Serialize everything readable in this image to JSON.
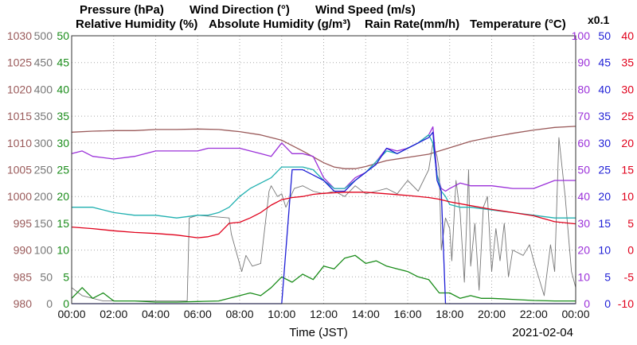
{
  "chart_data": {
    "type": "line",
    "date": "2021-02-04",
    "xlabel": "Time (JST)",
    "x_ticks": [
      "00:00",
      "02:00",
      "04:00",
      "06:00",
      "08:00",
      "10:00",
      "12:00",
      "14:00",
      "16:00",
      "18:00",
      "20:00",
      "22:00",
      "00:00"
    ],
    "x_hours": [
      0,
      2,
      4,
      6,
      8,
      10,
      12,
      14,
      16,
      18,
      20,
      22,
      24
    ],
    "legend": [
      {
        "label": "Pressure (hPa)",
        "color": "#9a5a5a"
      },
      {
        "label": "Wind Direction (°)",
        "color": "#777777"
      },
      {
        "label": "Wind Speed (m/s)",
        "color": "#1a8c1a"
      },
      {
        "label": "Relative Humidity (%)",
        "color": "#9b30d9"
      },
      {
        "label": "Absolute Humidity (g/m³)",
        "color": "#20b0b0"
      },
      {
        "label": "Rain Rate(mm/h)",
        "color": "#1f1fd6"
      },
      {
        "label": "Temperature (°C)",
        "color": "#e0001b"
      }
    ],
    "multiplier_label": "x0.1",
    "axes": {
      "pressure": {
        "ticks": [
          "1030",
          "1025",
          "1020",
          "1015",
          "1010",
          "1005",
          "1000",
          "995",
          "990",
          "985",
          "980"
        ],
        "range": [
          980,
          1030
        ],
        "color": "#9a5a5a"
      },
      "wind_dir": {
        "ticks": [
          "500",
          "450",
          "400",
          "350",
          "300",
          "250",
          "200",
          "150",
          "100",
          "50",
          "0"
        ],
        "range": [
          0,
          500
        ],
        "color": "#777777"
      },
      "wind_speed": {
        "ticks": [
          "50",
          "45",
          "40",
          "35",
          "30",
          "25",
          "20",
          "15",
          "10",
          "5",
          "0"
        ],
        "range": [
          0,
          50
        ],
        "color": "#1a8c1a"
      },
      "humidity": {
        "ticks": [
          "100",
          "90",
          "80",
          "70",
          "60",
          "50",
          "40",
          "30",
          "20",
          "10",
          "0"
        ],
        "range": [
          0,
          100
        ],
        "color": "#9b30d9"
      },
      "rain": {
        "ticks": [
          "50",
          "45",
          "40",
          "35",
          "30",
          "25",
          "20",
          "15",
          "10",
          "5",
          "0"
        ],
        "range": [
          0,
          50
        ],
        "color": "#1f1fd6"
      },
      "temperature": {
        "ticks": [
          "40",
          "35",
          "30",
          "25",
          "20",
          "15",
          "10",
          "5",
          "0",
          "-5",
          "-10"
        ],
        "range": [
          -10,
          40
        ],
        "color": "#e0001b"
      }
    },
    "series": [
      {
        "name": "Pressure (hPa)",
        "axis": "pressure",
        "color": "#9a5a5a",
        "x": [
          0,
          1,
          2,
          3,
          4,
          5,
          6,
          7,
          7.5,
          8,
          9,
          10,
          11,
          12,
          12.5,
          13,
          13.5,
          14,
          15,
          16,
          17,
          18,
          19,
          20,
          21,
          22,
          23,
          24
        ],
        "y": [
          1012,
          1012.2,
          1012.3,
          1012.3,
          1012.5,
          1012.5,
          1012.6,
          1012.5,
          1012.3,
          1012.1,
          1011.5,
          1010.5,
          1008.5,
          1006.3,
          1005.5,
          1005.2,
          1005.2,
          1005.6,
          1006.7,
          1007.3,
          1007.9,
          1009.1,
          1010.3,
          1011.1,
          1011.8,
          1012.4,
          1012.9,
          1013.1
        ]
      },
      {
        "name": "Wind Direction (°)",
        "axis": "wind_dir",
        "color": "#777777",
        "x": [
          0,
          0.5,
          1,
          1.5,
          2,
          3,
          4,
          5.5,
          5.6,
          6,
          7.5,
          7.6,
          8.1,
          8.3,
          8.6,
          9,
          9.4,
          9.5,
          9.8,
          10,
          10.2,
          10.6,
          11,
          11.5,
          12,
          12.5,
          13,
          13.5,
          14,
          14.5,
          15,
          15.5,
          16,
          16.5,
          17,
          17.2,
          17.4,
          17.5,
          17.6,
          17.8,
          18,
          18.1,
          18.3,
          18.5,
          18.7,
          18.9,
          19,
          19.2,
          19.4,
          19.6,
          19.8,
          20,
          20.2,
          20.4,
          20.6,
          20.8,
          21,
          21.5,
          21.8,
          22,
          22.5,
          22.8,
          23,
          23.2,
          23.5,
          23.8,
          24
        ],
        "y": [
          30,
          15,
          10,
          5,
          5,
          5,
          5,
          5,
          160,
          165,
          160,
          130,
          60,
          90,
          70,
          75,
          210,
          220,
          200,
          205,
          180,
          215,
          220,
          210,
          205,
          210,
          200,
          220,
          205,
          210,
          215,
          205,
          230,
          210,
          250,
          300,
          275,
          250,
          100,
          160,
          140,
          80,
          230,
          170,
          40,
          250,
          70,
          150,
          25,
          180,
          200,
          60,
          140,
          80,
          150,
          50,
          100,
          90,
          110,
          80,
          15,
          110,
          60,
          310,
          200,
          60,
          30
        ]
      },
      {
        "name": "Wind Speed (m/s)",
        "axis": "wind_speed",
        "color": "#1a8c1a",
        "x": [
          0,
          0.5,
          1,
          1.5,
          2,
          3,
          4,
          5,
          6,
          7,
          7.5,
          8,
          8.5,
          9,
          9.5,
          10,
          10.5,
          11,
          11.5,
          12,
          12.5,
          13,
          13.5,
          14,
          14.5,
          15,
          15.5,
          16,
          16.5,
          17,
          17.5,
          18,
          18.5,
          19,
          19.5,
          20,
          21,
          22,
          23,
          24
        ],
        "y": [
          1,
          3,
          1,
          2,
          0.5,
          0.5,
          0.3,
          0.3,
          0.4,
          0.5,
          1,
          1.5,
          2,
          1.5,
          3,
          5,
          4,
          5.5,
          4.5,
          7,
          6.5,
          8.5,
          9,
          7.5,
          8,
          7,
          6.5,
          6,
          5,
          4.5,
          2,
          2,
          1,
          1.5,
          1,
          1,
          0.8,
          0.6,
          0.5,
          0.5
        ]
      },
      {
        "name": "Relative Humidity (%)",
        "axis": "humidity",
        "color": "#9b30d9",
        "x": [
          0,
          0.5,
          1,
          2,
          3,
          4,
          5,
          6,
          6.5,
          7,
          7.5,
          8,
          8.5,
          9,
          9.5,
          10,
          10.5,
          11,
          11.5,
          12,
          12.5,
          13,
          13.5,
          14,
          14.5,
          15,
          15.5,
          16,
          16.5,
          17,
          17.2,
          17.4,
          17.6,
          17.8,
          18,
          18.5,
          19,
          20,
          21,
          22,
          23,
          24
        ],
        "y": [
          56,
          57,
          55,
          54,
          55,
          57,
          57,
          57,
          58,
          58,
          58,
          58,
          57,
          56,
          55,
          60,
          56,
          56,
          55,
          47,
          43,
          43,
          47,
          49,
          53,
          58,
          57,
          58,
          60,
          63,
          66,
          48,
          43,
          42,
          43,
          45,
          44,
          44,
          43,
          43,
          46,
          46
        ]
      },
      {
        "name": "Absolute Humidity (g/m³)",
        "axis": "humidity",
        "color": "#20b0b0",
        "x": [
          0,
          1,
          2,
          3,
          4,
          5,
          6,
          6.5,
          7,
          7.5,
          8,
          8.5,
          9,
          9.5,
          10,
          10.5,
          11,
          11.5,
          12,
          12.5,
          13,
          13.5,
          14,
          14.5,
          15,
          15.5,
          16,
          16.5,
          17,
          17.2,
          17.4,
          17.6,
          17.8,
          18,
          18.5,
          19,
          20,
          21,
          22,
          23,
          24
        ],
        "y": [
          36,
          36,
          34,
          33,
          33,
          32,
          33,
          33,
          34,
          36,
          40,
          43,
          45,
          47,
          51,
          51,
          51,
          50,
          46,
          43,
          43,
          46,
          49,
          53,
          57,
          56,
          58,
          60,
          63,
          60,
          48,
          42,
          40,
          37,
          36,
          36,
          35,
          34,
          33,
          32,
          32
        ]
      },
      {
        "name": "Rain Rate(mm/h)",
        "axis": "rain",
        "color": "#1f1fd6",
        "x": [
          0,
          10,
          10.5,
          11,
          11.5,
          12,
          12.5,
          13,
          13.5,
          14,
          14.5,
          15,
          15.5,
          16,
          16.5,
          17,
          17.2,
          17.4,
          17.6,
          17.8,
          18,
          24
        ],
        "y": [
          0,
          0,
          25,
          25,
          24,
          23,
          21,
          21,
          23,
          24.5,
          26,
          29,
          28,
          29,
          30,
          31,
          32,
          23,
          21,
          0,
          0,
          0
        ]
      },
      {
        "name": "Temperature (°C)",
        "axis": "temperature",
        "color": "#e0001b",
        "x": [
          0,
          1,
          2,
          3,
          4,
          5,
          6,
          6.5,
          7,
          7.5,
          8,
          8.5,
          9,
          9.5,
          10,
          10.5,
          11,
          11.5,
          12,
          13,
          14,
          15,
          16,
          17,
          17.5,
          18,
          19,
          20,
          21,
          22,
          23,
          24
        ],
        "y": [
          4.3,
          4,
          3.6,
          3.3,
          3.1,
          2.8,
          2.3,
          2.5,
          3,
          5,
          5.2,
          6,
          7,
          8.4,
          9.4,
          9.8,
          10,
          10.4,
          10.6,
          10.8,
          10.8,
          10.5,
          10.2,
          9.8,
          9.5,
          9,
          8.3,
          7.6,
          7,
          6.4,
          5.3,
          4.9
        ]
      }
    ]
  }
}
